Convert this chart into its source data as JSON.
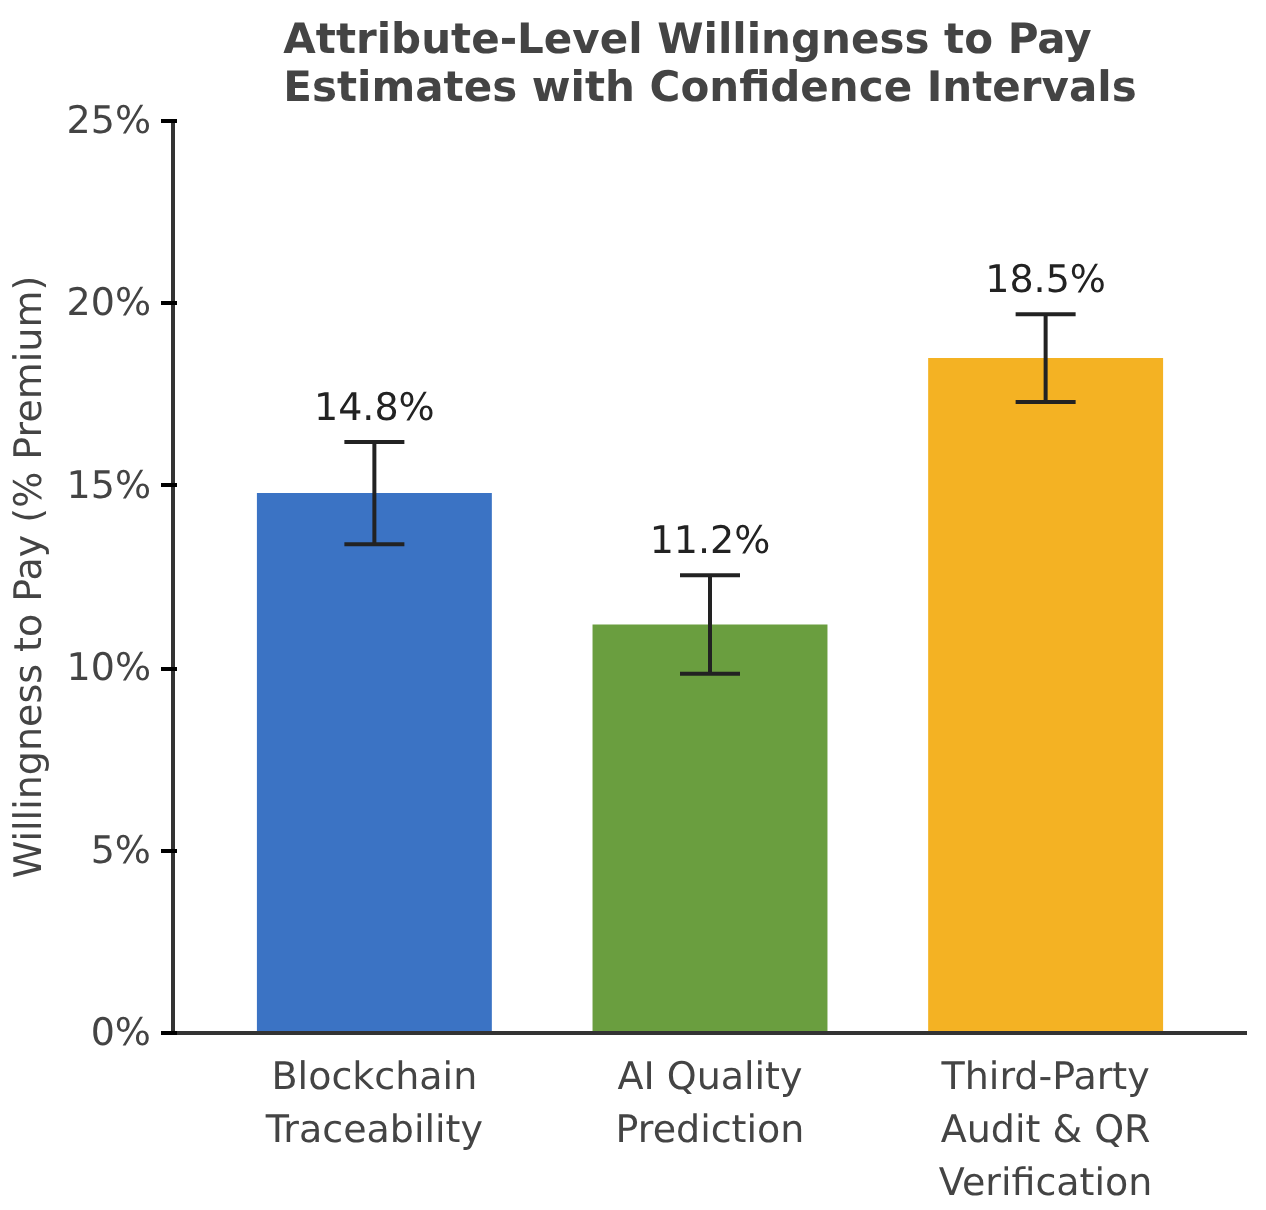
{
  "chart_data": {
    "type": "bar",
    "title": "Attribute-Level Willingness to Pay Estimates with Confidence Intervals",
    "ylabel": "Willingness to Pay (% Premium)",
    "categories": [
      "Blockchain Traceability",
      "AI Quality Prediction",
      "Third-Party Audit & QR Verification"
    ],
    "values": [
      14.8,
      11.2,
      18.5
    ],
    "value_labels": [
      "14.8%",
      "11.2%",
      "18.5%"
    ],
    "colors": [
      "#3b73c4",
      "#6a9e3f",
      "#f4b223"
    ],
    "errors": [
      1.4,
      1.35,
      1.2
    ],
    "ylim": [
      0,
      25
    ],
    "yticks": [
      {
        "value": 0,
        "label": "0%"
      },
      {
        "value": 5,
        "label": "5%"
      },
      {
        "value": 10,
        "label": "10%"
      },
      {
        "value": 15,
        "label": "15%"
      },
      {
        "value": 20,
        "label": "20%"
      },
      {
        "value": 25,
        "label": "25%"
      }
    ],
    "grid": false
  }
}
